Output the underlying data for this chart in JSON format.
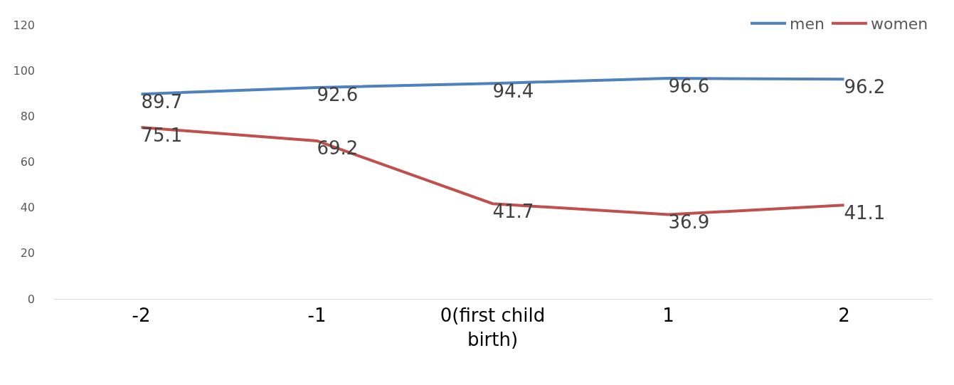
{
  "chart_data": {
    "type": "line",
    "categories": [
      "-2",
      "-1",
      "0(first child birth)",
      "1",
      "2"
    ],
    "series": [
      {
        "name": "men",
        "color": "#4f81bd",
        "values": [
          89.7,
          92.6,
          94.4,
          96.6,
          96.2
        ]
      },
      {
        "name": "women",
        "color": "#c0504d",
        "values": [
          75.1,
          69.2,
          41.7,
          36.9,
          41.1
        ]
      }
    ],
    "ylim": [
      0,
      120
    ],
    "yticks": [
      0,
      20,
      40,
      60,
      80,
      100,
      120
    ],
    "grid": false,
    "legend": "top right",
    "data_labels": true,
    "marker": "none",
    "line_style": "solid"
  }
}
